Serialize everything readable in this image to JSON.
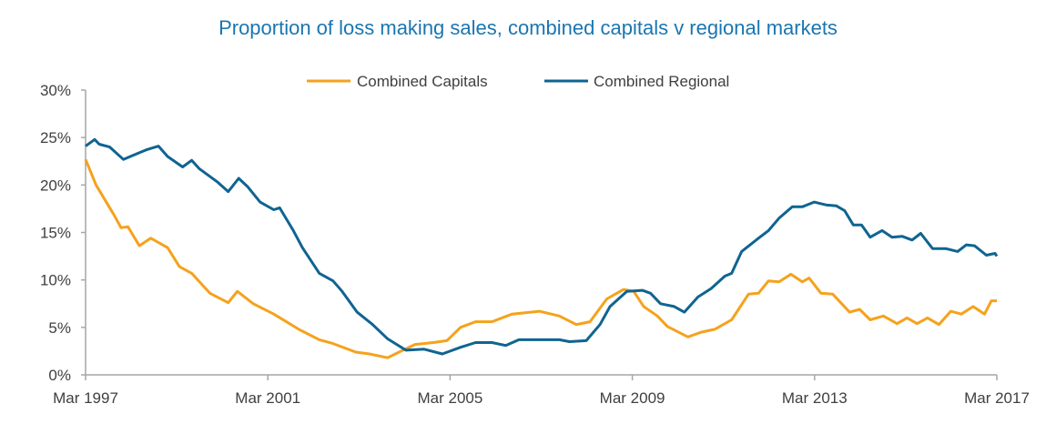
{
  "chart_data": {
    "type": "line",
    "title": "Proportion of loss making sales, combined capitals v regional markets",
    "xlabel": "",
    "ylabel": "",
    "x_unit": "decimal year",
    "xlim": [
      1997.17,
      2017.17
    ],
    "ylim": [
      0,
      30
    ],
    "y_ticks": [
      "0%",
      "5%",
      "10%",
      "15%",
      "20%",
      "25%",
      "30%"
    ],
    "x_ticks": [
      "Mar 1997",
      "Mar 2001",
      "Mar 2005",
      "Mar 2009",
      "Mar 2013",
      "Mar 2017"
    ],
    "grid": false,
    "legend": "top-center",
    "series": [
      {
        "name": "Combined Capitals",
        "color": "#f5a21c",
        "x": [
          1997.17,
          1997.4,
          1997.8,
          1997.95,
          1998.1,
          1998.35,
          1998.6,
          1998.97,
          1999.23,
          1999.5,
          1999.9,
          2000.3,
          2000.5,
          2000.85,
          2001.3,
          2001.85,
          2002.3,
          2002.6,
          2003.1,
          2003.4,
          2003.8,
          2004.05,
          2004.4,
          2004.8,
          2005.1,
          2005.4,
          2005.73,
          2006.09,
          2006.53,
          2007.13,
          2007.57,
          2007.94,
          2008.24,
          2008.61,
          2008.98,
          2009.2,
          2009.42,
          2009.72,
          2009.94,
          2010.39,
          2010.68,
          2010.98,
          2011.35,
          2011.72,
          2011.94,
          2012.16,
          2012.39,
          2012.65,
          2012.9,
          2013.05,
          2013.31,
          2013.57,
          2013.94,
          2014.16,
          2014.39,
          2014.68,
          2014.98,
          2015.2,
          2015.42,
          2015.65,
          2015.9,
          2016.16,
          2016.39,
          2016.65,
          2016.9,
          2017.05,
          2017.17
        ],
        "y": [
          22.7,
          20,
          16.8,
          15.5,
          15.6,
          13.6,
          14.4,
          13.4,
          11.4,
          10.7,
          8.6,
          7.6,
          8.8,
          7.5,
          6.4,
          4.8,
          3.7,
          3.3,
          2.4,
          2.2,
          1.8,
          2.4,
          3.2,
          3.4,
          3.6,
          5.0,
          5.6,
          5.6,
          6.4,
          6.7,
          6.2,
          5.3,
          5.6,
          8.0,
          9.0,
          8.8,
          7.2,
          6.2,
          5.1,
          4.0,
          4.5,
          4.8,
          5.8,
          8.5,
          8.6,
          9.9,
          9.8,
          10.6,
          9.8,
          10.2,
          8.6,
          8.5,
          6.6,
          6.9,
          5.8,
          6.2,
          5.4,
          6.0,
          5.4,
          6.0,
          5.3,
          6.7,
          6.4,
          7.2,
          6.4,
          7.8,
          7.8
        ]
      },
      {
        "name": "Combined Regional",
        "color": "#0f6491",
        "x": [
          1997.17,
          1997.37,
          1997.47,
          1997.7,
          1998.0,
          1998.1,
          1998.3,
          1998.5,
          1998.77,
          1998.97,
          1999.3,
          1999.5,
          1999.67,
          2000.07,
          2000.3,
          2000.53,
          2000.73,
          2001.0,
          2001.3,
          2001.43,
          2001.73,
          2001.93,
          2002.3,
          2002.6,
          2002.8,
          2003.13,
          2003.47,
          2003.8,
          2004.2,
          2004.6,
          2005.0,
          2005.4,
          2005.73,
          2006.09,
          2006.39,
          2006.68,
          2007.2,
          2007.57,
          2007.79,
          2008.16,
          2008.46,
          2008.68,
          2009.05,
          2009.39,
          2009.57,
          2009.79,
          2010.09,
          2010.31,
          2010.61,
          2010.9,
          2011.2,
          2011.35,
          2011.57,
          2011.94,
          2012.16,
          2012.39,
          2012.68,
          2012.9,
          2013.16,
          2013.42,
          2013.65,
          2013.83,
          2014.02,
          2014.2,
          2014.39,
          2014.65,
          2014.87,
          2015.09,
          2015.31,
          2015.5,
          2015.76,
          2016.05,
          2016.31,
          2016.5,
          2016.68,
          2016.94,
          2017.13,
          2017.17
        ],
        "y": [
          24.1,
          24.8,
          24.3,
          24.0,
          22.7,
          22.9,
          23.3,
          23.7,
          24.1,
          23.0,
          21.9,
          22.6,
          21.7,
          20.3,
          19.3,
          20.7,
          19.8,
          18.2,
          17.4,
          17.6,
          15.2,
          13.4,
          10.7,
          9.9,
          8.8,
          6.6,
          5.3,
          3.8,
          2.6,
          2.7,
          2.2,
          2.9,
          3.4,
          3.4,
          3.1,
          3.7,
          3.7,
          3.7,
          3.5,
          3.6,
          5.3,
          7.2,
          8.8,
          8.9,
          8.6,
          7.5,
          7.2,
          6.6,
          8.2,
          9.1,
          10.4,
          10.7,
          13.0,
          14.4,
          15.2,
          16.5,
          17.7,
          17.7,
          18.2,
          17.9,
          17.8,
          17.3,
          15.8,
          15.8,
          14.5,
          15.2,
          14.5,
          14.6,
          14.2,
          14.9,
          13.3,
          13.3,
          13.0,
          13.7,
          13.6,
          12.6,
          12.8,
          12.5
        ]
      }
    ]
  }
}
